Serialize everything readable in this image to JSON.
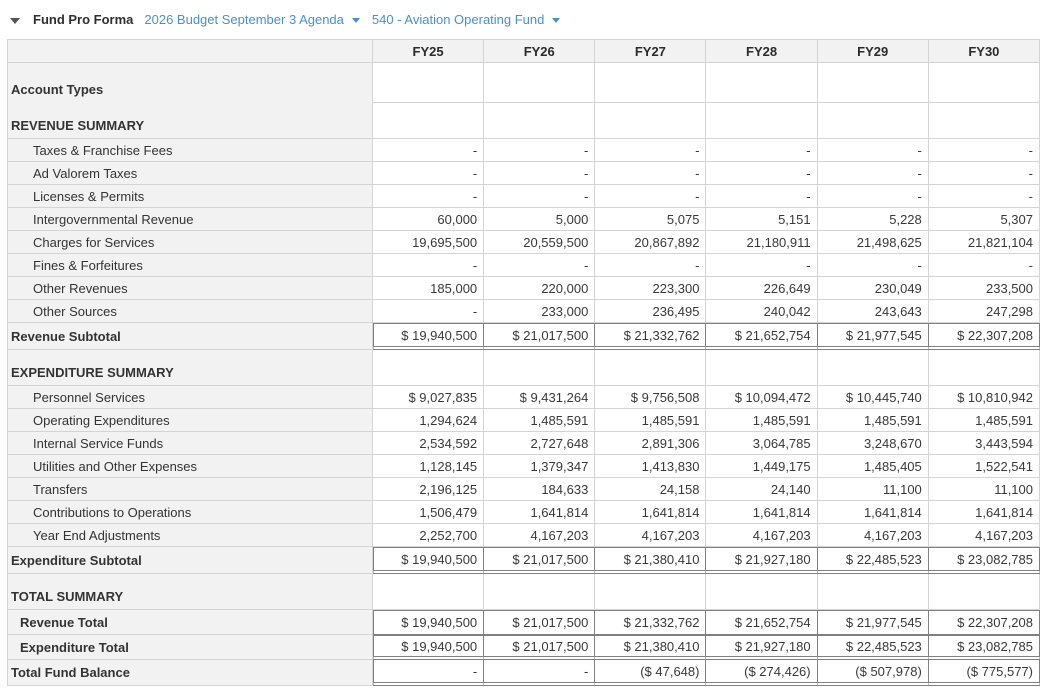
{
  "toolbar": {
    "title": "Fund Pro Forma",
    "budget_selector": "2026 Budget September 3 Agenda",
    "fund_selector": "540 - Aviation Operating Fund",
    "link_color": "#4a90cd"
  },
  "chart_data": {
    "type": "table",
    "columns": [
      "FY25",
      "FY26",
      "FY27",
      "FY28",
      "FY29",
      "FY30"
    ],
    "rows": [
      {
        "label": "Account Types",
        "type": "section1",
        "values": [
          "",
          "",
          "",
          "",
          "",
          ""
        ]
      },
      {
        "label": "REVENUE SUMMARY",
        "type": "section",
        "values": [
          "",
          "",
          "",
          "",
          "",
          ""
        ]
      },
      {
        "label": "Taxes & Franchise Fees",
        "type": "detail",
        "values": [
          "-",
          "-",
          "-",
          "-",
          "-",
          "-"
        ]
      },
      {
        "label": "Ad Valorem Taxes",
        "type": "detail",
        "values": [
          "-",
          "-",
          "-",
          "-",
          "-",
          "-"
        ]
      },
      {
        "label": "Licenses & Permits",
        "type": "detail",
        "values": [
          "-",
          "-",
          "-",
          "-",
          "-",
          "-"
        ]
      },
      {
        "label": "Intergovernmental Revenue",
        "type": "detail",
        "values": [
          "60,000",
          "5,000",
          "5,075",
          "5,151",
          "5,228",
          "5,307"
        ]
      },
      {
        "label": "Charges for Services",
        "type": "detail",
        "values": [
          "19,695,500",
          "20,559,500",
          "20,867,892",
          "21,180,911",
          "21,498,625",
          "21,821,104"
        ]
      },
      {
        "label": "Fines & Forfeitures",
        "type": "detail",
        "values": [
          "-",
          "-",
          "-",
          "-",
          "-",
          "-"
        ]
      },
      {
        "label": "Other Revenues",
        "type": "detail",
        "values": [
          "185,000",
          "220,000",
          "223,300",
          "226,649",
          "230,049",
          "233,500"
        ]
      },
      {
        "label": "Other Sources",
        "type": "detail",
        "values": [
          "-",
          "233,000",
          "236,495",
          "240,042",
          "243,643",
          "247,298"
        ]
      },
      {
        "label": "Revenue Subtotal",
        "type": "subtotal",
        "values": [
          "$ 19,940,500",
          "$ 21,017,500",
          "$ 21,332,762",
          "$ 21,652,754",
          "$ 21,977,545",
          "$ 22,307,208"
        ]
      },
      {
        "label": "EXPENDITURE SUMMARY",
        "type": "section",
        "values": [
          "",
          "",
          "",
          "",
          "",
          ""
        ]
      },
      {
        "label": "Personnel Services",
        "type": "detail",
        "values": [
          "$ 9,027,835",
          "$ 9,431,264",
          "$ 9,756,508",
          "$ 10,094,472",
          "$ 10,445,740",
          "$ 10,810,942"
        ]
      },
      {
        "label": "Operating Expenditures",
        "type": "detail",
        "values": [
          "1,294,624",
          "1,485,591",
          "1,485,591",
          "1,485,591",
          "1,485,591",
          "1,485,591"
        ]
      },
      {
        "label": "Internal Service Funds",
        "type": "detail",
        "values": [
          "2,534,592",
          "2,727,648",
          "2,891,306",
          "3,064,785",
          "3,248,670",
          "3,443,594"
        ]
      },
      {
        "label": "Utilities and Other Expenses",
        "type": "detail",
        "values": [
          "1,128,145",
          "1,379,347",
          "1,413,830",
          "1,449,175",
          "1,485,405",
          "1,522,541"
        ]
      },
      {
        "label": "Transfers",
        "type": "detail",
        "values": [
          "2,196,125",
          "184,633",
          "24,158",
          "24,140",
          "11,100",
          "11,100"
        ]
      },
      {
        "label": "Contributions to Operations",
        "type": "detail",
        "values": [
          "1,506,479",
          "1,641,814",
          "1,641,814",
          "1,641,814",
          "1,641,814",
          "1,641,814"
        ]
      },
      {
        "label": "Year End Adjustments",
        "type": "detail",
        "values": [
          "2,252,700",
          "4,167,203",
          "4,167,203",
          "4,167,203",
          "4,167,203",
          "4,167,203"
        ]
      },
      {
        "label": "Expenditure Subtotal",
        "type": "subtotal",
        "values": [
          "$ 19,940,500",
          "$ 21,017,500",
          "$ 21,380,410",
          "$ 21,927,180",
          "$ 22,485,523",
          "$ 23,082,785"
        ]
      },
      {
        "label": "TOTAL SUMMARY",
        "type": "section",
        "values": [
          "",
          "",
          "",
          "",
          "",
          ""
        ]
      },
      {
        "label": "Revenue Total",
        "type": "totalmid",
        "values": [
          "$ 19,940,500",
          "$ 21,017,500",
          "$ 21,332,762",
          "$ 21,652,754",
          "$ 21,977,545",
          "$ 22,307,208"
        ]
      },
      {
        "label": "Expenditure Total",
        "type": "totaldbl",
        "values": [
          "$ 19,940,500",
          "$ 21,017,500",
          "$ 21,380,410",
          "$ 21,927,180",
          "$ 22,485,523",
          "$ 23,082,785"
        ]
      },
      {
        "label": "Total Fund Balance",
        "type": "grand",
        "values": [
          "-",
          "-",
          "($ 47,648)",
          "($ 274,426)",
          "($ 507,978)",
          "($ 775,577)"
        ]
      }
    ],
    "grid_border_color": "#d4d4d4",
    "accent_border_color": "#808080",
    "header_bg": "#f2f2f2"
  }
}
